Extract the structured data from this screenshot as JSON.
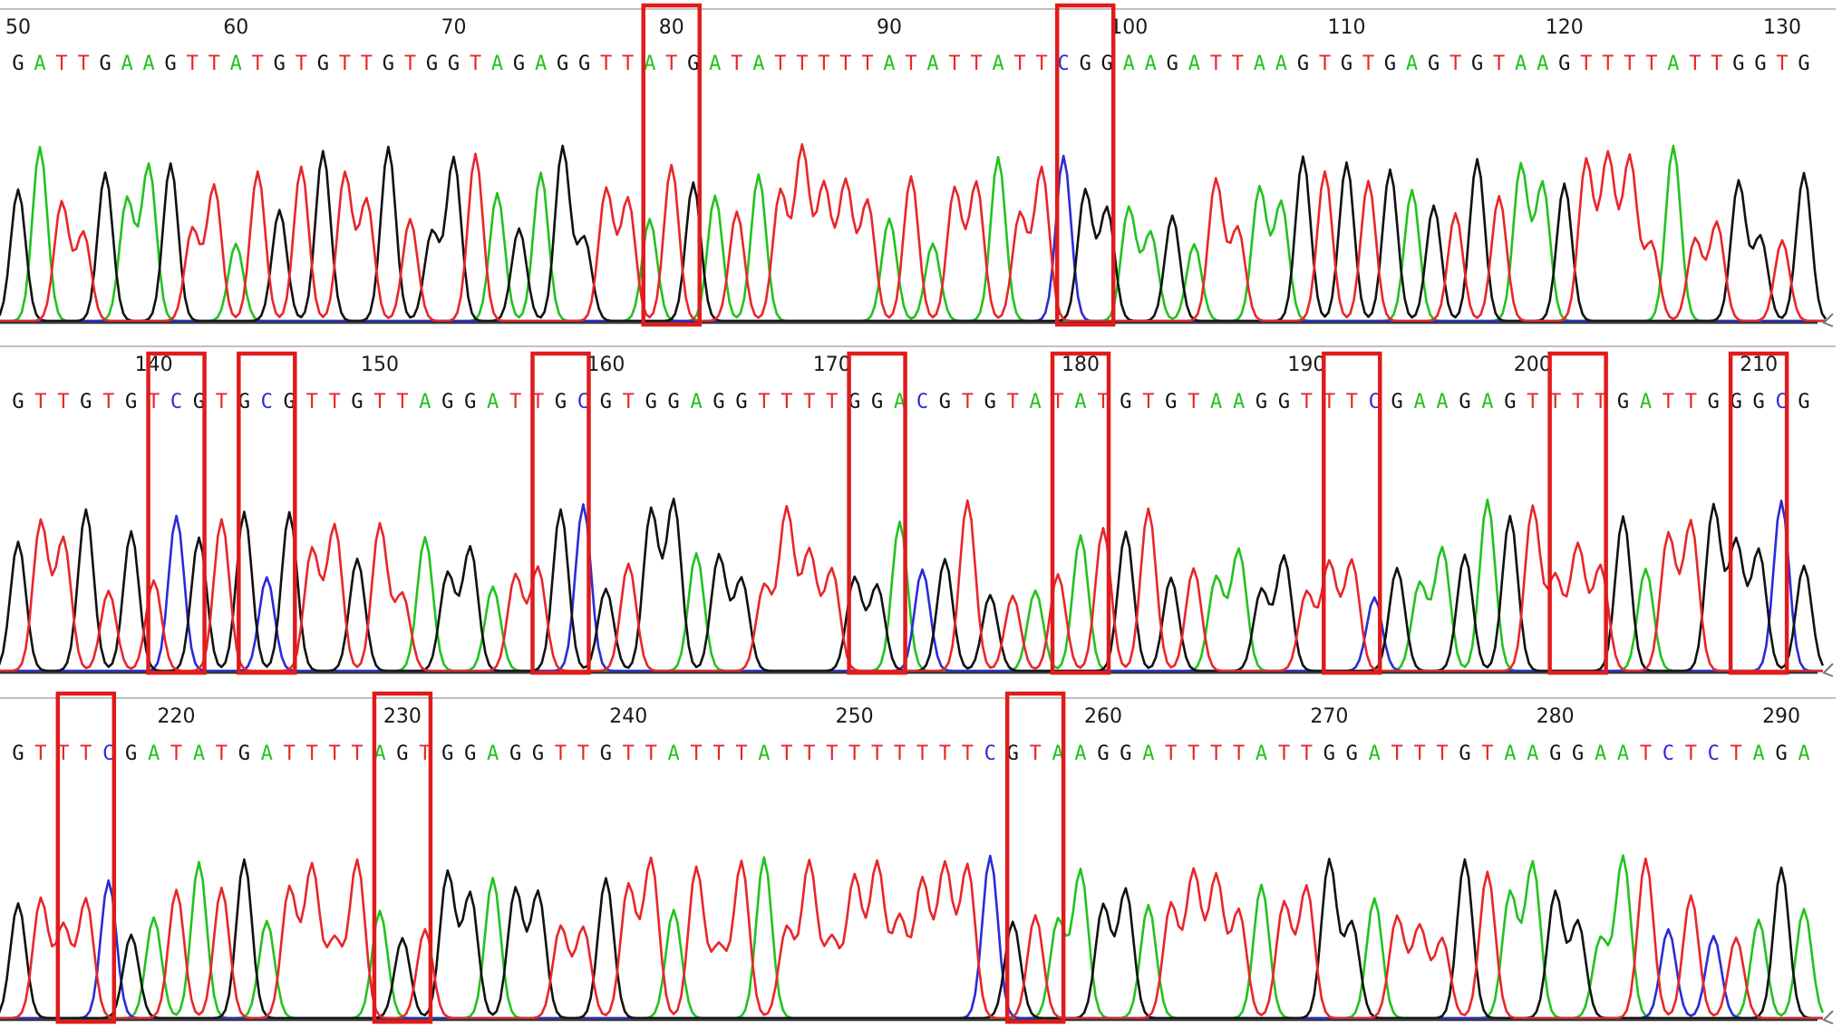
{
  "colors": {
    "A": "#23c21f",
    "C": "#2b2bd6",
    "G": "#111111",
    "T": "#e8262a",
    "highlight": "#e01b1b",
    "axis": "#3a3a3a"
  },
  "chart_data": {
    "type": "line",
    "title": "",
    "xlabel": "",
    "ylabel": "",
    "rows": [
      {
        "start": 50,
        "end": 131,
        "ticks": [
          50,
          60,
          70,
          80,
          90,
          100,
          110,
          120,
          130
        ],
        "sequence": "GATTGAAGTTATGTGTTGTGGTAGAGGTTATGATATTTTTATATTATTCGGAAGATTAAGTGTGAGTGTAAGTTTTATTGGTG",
        "highlighted_positions": [
          80,
          98
        ]
      },
      {
        "start": 134,
        "end": 212,
        "ticks": [
          140,
          150,
          160,
          170,
          180,
          190,
          200,
          210
        ],
        "sequence": "GTTGTGTCGTGCGTTGTTAGGATTGCGTGGAGGTTTTGGACGTGTATATGTGTAAGGTTTCGAAGAGTTTTGATTGGGCG",
        "highlighted_positions": [
          141,
          145,
          158,
          172,
          180,
          192,
          202,
          210
        ]
      },
      {
        "start": 213,
        "end": 291,
        "ticks": [
          220,
          230,
          240,
          250,
          260,
          270,
          280,
          290
        ],
        "sequence": "GTTTCGATATGATTTTAGTGGAGGTTGTTATTTATTTTTTTTTCGTAAGGATTTTATTGGATTTGTAAGGAATCTCTAGA",
        "highlighted_positions": [
          216,
          230,
          257
        ]
      }
    ]
  }
}
